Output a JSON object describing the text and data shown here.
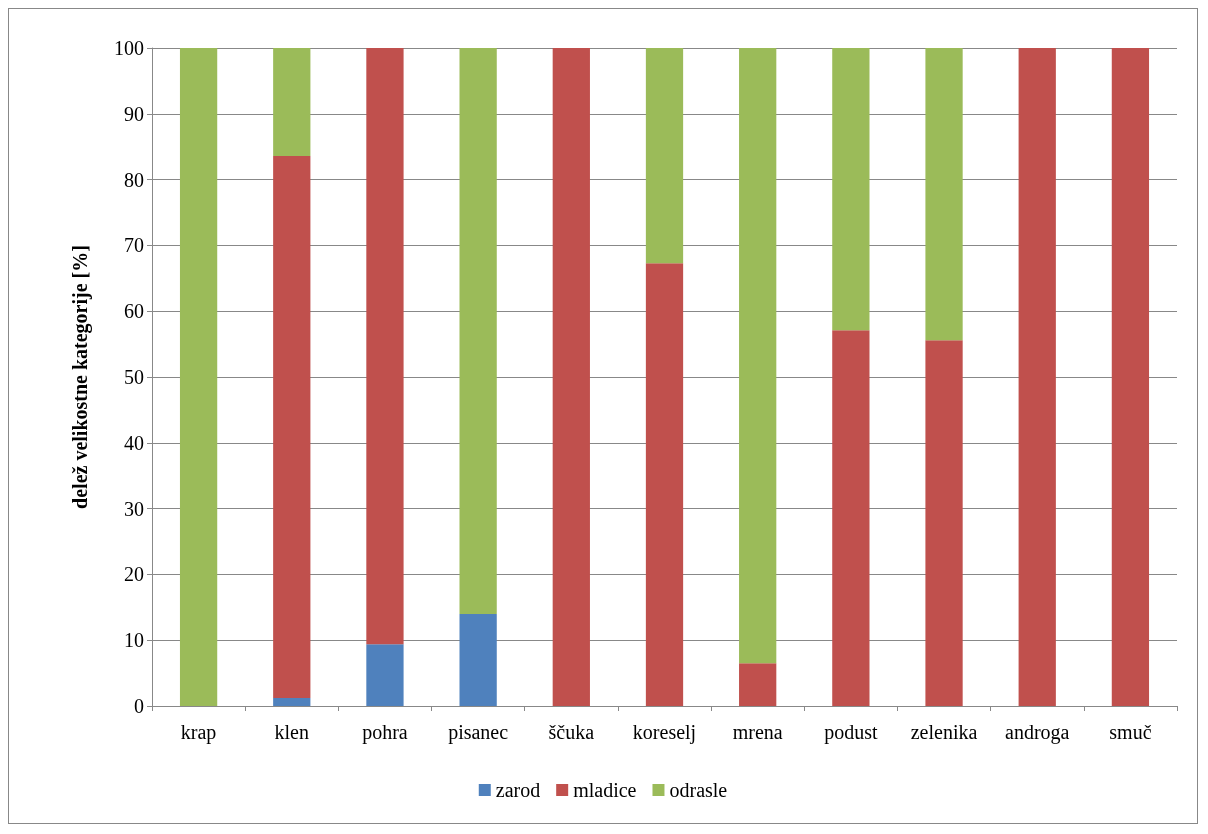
{
  "chart_data": {
    "type": "bar",
    "stacked": true,
    "ylabel": "delež velikostne kategorije [%]",
    "categories": [
      "krap",
      "klen",
      "pohra",
      "pisanec",
      "ščuka",
      "koreselj",
      "mrena",
      "podust",
      "zelenika",
      "androga",
      "smuč"
    ],
    "series": [
      {
        "name": "zarod",
        "color": "#4f81bd",
        "values": [
          0,
          1.2,
          9.4,
          14.0,
          0,
          0,
          0,
          0,
          0,
          0,
          0
        ]
      },
      {
        "name": "mladice",
        "color": "#c0504d",
        "values": [
          0,
          82.4,
          90.6,
          0,
          100,
          67.3,
          6.5,
          57.1,
          55.6,
          100,
          100
        ]
      },
      {
        "name": "odrasle",
        "color": "#9bbb59",
        "values": [
          100,
          16.4,
          0,
          86.0,
          0,
          32.7,
          93.5,
          42.9,
          44.4,
          0,
          0
        ]
      }
    ],
    "ylim": [
      0,
      100
    ],
    "yticks": [
      0,
      10,
      20,
      30,
      40,
      50,
      60,
      70,
      80,
      90,
      100
    ],
    "grid": "y",
    "legend": "bottom"
  }
}
